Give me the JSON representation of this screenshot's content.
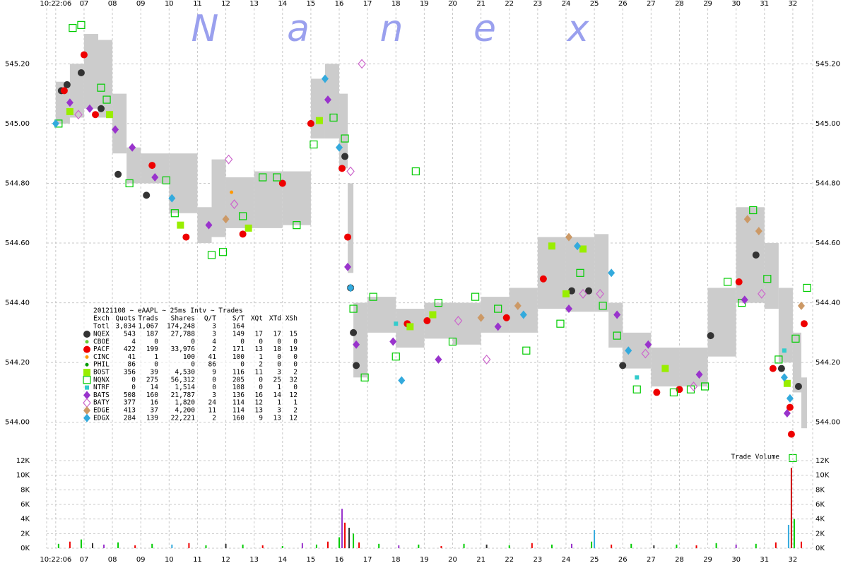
{
  "chart_data": [
    {
      "type": "scatter",
      "watermark": [
        "N",
        "a",
        "n",
        "e",
        "x"
      ],
      "xlim": [
        -0.32,
        26.7
      ],
      "xticks": [
        {
          "value": 0,
          "label": "10:22:06"
        },
        {
          "value": 1,
          "label": "07"
        },
        {
          "value": 2,
          "label": "08"
        },
        {
          "value": 3,
          "label": "09"
        },
        {
          "value": 4,
          "label": "10"
        },
        {
          "value": 5,
          "label": "11"
        },
        {
          "value": 6,
          "label": "12"
        },
        {
          "value": 7,
          "label": "13"
        },
        {
          "value": 8,
          "label": "14"
        },
        {
          "value": 9,
          "label": "15"
        },
        {
          "value": 10,
          "label": "16"
        },
        {
          "value": 11,
          "label": "17"
        },
        {
          "value": 12,
          "label": "18"
        },
        {
          "value": 13,
          "label": "19"
        },
        {
          "value": 14,
          "label": "20"
        },
        {
          "value": 15,
          "label": "21"
        },
        {
          "value": 16,
          "label": "22"
        },
        {
          "value": 17,
          "label": "23"
        },
        {
          "value": 18,
          "label": "24"
        },
        {
          "value": 19,
          "label": "25"
        },
        {
          "value": 20,
          "label": "26"
        },
        {
          "value": 21,
          "label": "27"
        },
        {
          "value": 22,
          "label": "28"
        },
        {
          "value": 23,
          "label": "29"
        },
        {
          "value": 24,
          "label": "30"
        },
        {
          "value": 25,
          "label": "31"
        },
        {
          "value": 26,
          "label": "32"
        }
      ],
      "ylim": [
        543.9,
        545.39
      ],
      "yticks": [
        {
          "value": 544.0,
          "label": "544.00"
        },
        {
          "value": 544.2,
          "label": "544.20"
        },
        {
          "value": 544.4,
          "label": "544.40"
        },
        {
          "value": 544.6,
          "label": "544.60"
        },
        {
          "value": 544.8,
          "label": "544.80"
        },
        {
          "value": 545.0,
          "label": "545.00"
        },
        {
          "value": 545.2,
          "label": "545.20"
        }
      ],
      "grid": true,
      "spread": {
        "color": "#cccccc",
        "x": [
          0,
          0.5,
          1,
          1.5,
          2,
          2.5,
          3,
          4,
          5,
          5.5,
          6,
          7,
          8,
          9,
          9.5,
          10,
          10.3,
          10.5,
          11,
          12,
          13,
          14,
          15,
          16,
          17,
          18,
          19,
          19.5,
          20,
          21,
          22,
          23,
          24,
          25,
          25.5,
          26,
          26.3
        ],
        "low": [
          545.0,
          545.02,
          545.05,
          545.02,
          544.9,
          544.8,
          544.8,
          544.7,
          544.6,
          544.62,
          544.65,
          544.65,
          544.66,
          544.95,
          544.95,
          544.85,
          544.5,
          544.15,
          544.3,
          544.25,
          544.28,
          544.26,
          544.3,
          544.3,
          544.38,
          544.37,
          544.37,
          544.25,
          544.18,
          544.12,
          544.12,
          544.22,
          544.4,
          544.38,
          544.2,
          544.1,
          543.98
        ],
        "high": [
          545.14,
          545.2,
          545.3,
          545.28,
          545.1,
          544.92,
          544.9,
          544.9,
          544.72,
          544.88,
          544.82,
          544.84,
          544.84,
          545.15,
          545.2,
          545.1,
          544.8,
          544.4,
          544.42,
          544.38,
          544.4,
          544.4,
          544.42,
          544.45,
          544.62,
          544.62,
          544.63,
          544.4,
          544.3,
          544.25,
          544.25,
          544.45,
          544.72,
          544.6,
          544.45,
          544.3,
          544.15
        ]
      },
      "legend": {
        "title": "20121108 ~ eAAPL ~ 25ms Intv ~ Trades",
        "columns": [
          "Exch",
          "Quots",
          "Trads",
          "Shares",
          "Q/T",
          "S/T",
          "XQt",
          "XTd",
          "XSh"
        ],
        "total": [
          "Totl",
          "3,034",
          "1,067",
          "174,248",
          "3",
          "164"
        ]
      },
      "series": [
        {
          "name": "NQEX",
          "color": "#333333",
          "marker": "circle",
          "stats": [
            "543",
            "187",
            "27,788",
            "3",
            "149",
            "17",
            "17",
            "15"
          ],
          "x": [
            0.2,
            0.4,
            0.9,
            1.6,
            2.2,
            3.2,
            10.2,
            10.4,
            10.5,
            10.6,
            18.2,
            18.8,
            20.0,
            23.1,
            24.7,
            26.2,
            25.6
          ],
          "values": [
            545.11,
            545.13,
            545.17,
            545.05,
            544.83,
            544.76,
            544.89,
            544.45,
            544.3,
            544.19,
            544.44,
            544.44,
            544.19,
            544.29,
            544.56,
            544.12,
            544.18
          ]
        },
        {
          "name": "CBOE",
          "color": "#66cc33",
          "marker": "dot",
          "stats": [
            "4",
            "0",
            "0",
            "4",
            "0",
            "0",
            "0",
            "0"
          ],
          "x": [],
          "values": []
        },
        {
          "name": "PACF",
          "color": "#ee0000",
          "marker": "circle",
          "stats": [
            "422",
            "199",
            "33,976",
            "2",
            "171",
            "13",
            "18",
            "19"
          ],
          "x": [
            0.3,
            1.0,
            1.4,
            3.4,
            4.6,
            6.6,
            8.0,
            9.0,
            10.1,
            10.3,
            12.4,
            13.1,
            15.9,
            17.2,
            21.2,
            22.0,
            24.1,
            25.3,
            26.4,
            25.9,
            25.95
          ],
          "values": [
            545.11,
            545.23,
            545.03,
            544.86,
            544.62,
            544.63,
            544.8,
            545.0,
            544.85,
            544.62,
            544.33,
            544.34,
            544.35,
            544.48,
            544.1,
            544.11,
            544.47,
            544.18,
            544.33,
            544.05,
            543.96
          ]
        },
        {
          "name": "CINC",
          "color": "#ff9900",
          "marker": "dot",
          "stats": [
            "41",
            "1",
            "100",
            "41",
            "100",
            "1",
            "0",
            "0"
          ],
          "x": [
            6.2
          ],
          "values": [
            544.77
          ]
        },
        {
          "name": "PHIL",
          "color": "#009900",
          "marker": "dot",
          "stats": [
            "86",
            "0",
            "0",
            "86",
            "0",
            "2",
            "0",
            "0"
          ],
          "x": [],
          "values": []
        },
        {
          "name": "BOST",
          "color": "#99ee00",
          "marker": "square",
          "stats": [
            "356",
            "39",
            "4,530",
            "9",
            "116",
            "11",
            "3",
            "2"
          ],
          "x": [
            0.5,
            1.9,
            4.4,
            6.8,
            9.3,
            12.5,
            13.3,
            17.5,
            18.0,
            18.6,
            21.5,
            25.8
          ],
          "values": [
            545.04,
            545.03,
            544.66,
            544.65,
            545.01,
            544.32,
            544.36,
            544.59,
            544.43,
            544.58,
            544.18,
            544.13
          ]
        },
        {
          "name": "NQNX",
          "color": "#00cc00",
          "marker": "hollow-square",
          "stats": [
            "0",
            "275",
            "56,312",
            "0",
            "205",
            "0",
            "25",
            "32"
          ],
          "x": [
            0.1,
            0.6,
            0.9,
            1.6,
            1.8,
            2.6,
            3.9,
            4.2,
            5.5,
            5.9,
            6.6,
            7.3,
            7.8,
            8.5,
            9.1,
            9.8,
            10.2,
            10.5,
            10.9,
            11.2,
            12.0,
            12.7,
            13.5,
            14.0,
            14.8,
            15.6,
            16.6,
            17.8,
            18.5,
            19.3,
            19.8,
            20.5,
            21.8,
            22.4,
            22.9,
            23.7,
            24.2,
            24.6,
            25.1,
            25.5,
            26.1,
            26.0,
            26.5
          ],
          "values": [
            545.0,
            545.32,
            545.33,
            545.12,
            545.08,
            544.8,
            544.81,
            544.7,
            544.56,
            544.57,
            544.69,
            544.82,
            544.82,
            544.66,
            544.93,
            545.02,
            544.95,
            544.38,
            544.15,
            544.42,
            544.22,
            544.84,
            544.4,
            544.27,
            544.42,
            544.38,
            544.24,
            544.33,
            544.5,
            544.39,
            544.29,
            544.11,
            544.1,
            544.11,
            544.12,
            544.47,
            544.4,
            544.71,
            544.48,
            544.21,
            544.28,
            543.88,
            544.45
          ]
        },
        {
          "name": "NTRF",
          "color": "#33cccc",
          "marker": "small-square",
          "stats": [
            "0",
            "14",
            "1,514",
            "0",
            "108",
            "0",
            "1",
            "0"
          ],
          "x": [
            12.0,
            20.5,
            25.7
          ],
          "values": [
            544.33,
            544.15,
            544.24
          ]
        },
        {
          "name": "BATS",
          "color": "#9933cc",
          "marker": "diamond",
          "stats": [
            "508",
            "160",
            "21,787",
            "3",
            "136",
            "16",
            "14",
            "12"
          ],
          "x": [
            0.5,
            1.2,
            2.1,
            2.7,
            3.5,
            5.4,
            9.6,
            10.3,
            10.6,
            11.9,
            13.5,
            15.6,
            18.1,
            19.8,
            20.9,
            22.7,
            24.3,
            25.8
          ],
          "values": [
            545.07,
            545.05,
            544.98,
            544.92,
            544.82,
            544.66,
            545.08,
            544.52,
            544.26,
            544.27,
            544.21,
            544.32,
            544.38,
            544.36,
            544.26,
            544.16,
            544.41,
            544.03
          ]
        },
        {
          "name": "BATY",
          "color": "#cc66cc",
          "marker": "hollow-diamond",
          "stats": [
            "377",
            "16",
            "1,820",
            "24",
            "114",
            "12",
            "1",
            "1"
          ],
          "x": [
            0.8,
            6.1,
            6.3,
            10.8,
            10.4,
            14.2,
            15.2,
            18.6,
            19.2,
            20.8,
            22.5,
            24.9
          ],
          "values": [
            545.03,
            544.88,
            544.73,
            545.2,
            544.84,
            544.34,
            544.21,
            544.43,
            544.43,
            544.23,
            544.12,
            544.43
          ]
        },
        {
          "name": "EDGE",
          "color": "#cc9966",
          "marker": "diamond",
          "stats": [
            "413",
            "37",
            "4,200",
            "11",
            "114",
            "13",
            "3",
            "2"
          ],
          "x": [
            6.0,
            15.0,
            16.3,
            18.1,
            24.4,
            24.8,
            26.3
          ],
          "values": [
            544.68,
            544.35,
            544.39,
            544.62,
            544.68,
            544.64,
            544.39
          ]
        },
        {
          "name": "EDGX",
          "color": "#33aadd",
          "marker": "diamond",
          "stats": [
            "284",
            "139",
            "22,221",
            "2",
            "160",
            "9",
            "13",
            "12"
          ],
          "x": [
            0.0,
            4.1,
            9.5,
            10.0,
            10.4,
            12.2,
            16.5,
            18.4,
            19.6,
            20.2,
            25.7,
            25.9
          ],
          "values": [
            545.0,
            544.75,
            545.15,
            544.92,
            544.45,
            544.14,
            544.36,
            544.59,
            544.5,
            544.24,
            544.15,
            544.08
          ]
        }
      ]
    },
    {
      "type": "bar",
      "label": "Trade Volume",
      "xlim": [
        -0.32,
        26.7
      ],
      "xticks": [
        {
          "value": 0,
          "label": "10:22:06"
        },
        {
          "value": 1,
          "label": "07"
        },
        {
          "value": 2,
          "label": "08"
        },
        {
          "value": 3,
          "label": "09"
        },
        {
          "value": 4,
          "label": "10"
        },
        {
          "value": 5,
          "label": "11"
        },
        {
          "value": 6,
          "label": "12"
        },
        {
          "value": 7,
          "label": "13"
        },
        {
          "value": 8,
          "label": "14"
        },
        {
          "value": 9,
          "label": "15"
        },
        {
          "value": 10,
          "label": "16"
        },
        {
          "value": 11,
          "label": "17"
        },
        {
          "value": 12,
          "label": "18"
        },
        {
          "value": 13,
          "label": "19"
        },
        {
          "value": 14,
          "label": "20"
        },
        {
          "value": 15,
          "label": "21"
        },
        {
          "value": 16,
          "label": "22"
        },
        {
          "value": 17,
          "label": "23"
        },
        {
          "value": 18,
          "label": "24"
        },
        {
          "value": 19,
          "label": "25"
        },
        {
          "value": 20,
          "label": "26"
        },
        {
          "value": 21,
          "label": "27"
        },
        {
          "value": 22,
          "label": "28"
        },
        {
          "value": 23,
          "label": "29"
        },
        {
          "value": 24,
          "label": "30"
        },
        {
          "value": 25,
          "label": "31"
        },
        {
          "value": 26,
          "label": "32"
        }
      ],
      "ylim": [
        0,
        12000
      ],
      "yticks": [
        {
          "value": 0,
          "label": "0K"
        },
        {
          "value": 2000,
          "label": "2K"
        },
        {
          "value": 4000,
          "label": "4K"
        },
        {
          "value": 6000,
          "label": "6K"
        },
        {
          "value": 8000,
          "label": "8K"
        },
        {
          "value": 10000,
          "label": "10K"
        },
        {
          "value": 12000,
          "label": "12K"
        }
      ],
      "x": [
        0.1,
        0.5,
        0.9,
        1.3,
        1.7,
        2.2,
        2.8,
        3.4,
        4.1,
        4.7,
        5.3,
        6.0,
        6.6,
        7.3,
        8.0,
        8.7,
        9.2,
        9.6,
        10.0,
        10.1,
        10.2,
        10.35,
        10.5,
        10.7,
        11.4,
        12.1,
        12.8,
        13.6,
        14.4,
        15.2,
        16.0,
        16.8,
        17.5,
        18.2,
        18.9,
        19.0,
        19.6,
        20.3,
        21.1,
        21.9,
        22.6,
        23.3,
        24.0,
        24.7,
        25.4,
        25.85,
        25.95,
        26.05,
        26.3
      ],
      "values": [
        600,
        900,
        1200,
        700,
        500,
        800,
        400,
        600,
        500,
        700,
        400,
        600,
        500,
        400,
        300,
        700,
        500,
        900,
        1500,
        5400,
        3500,
        2800,
        2000,
        800,
        600,
        400,
        500,
        300,
        600,
        500,
        400,
        700,
        500,
        600,
        900,
        2500,
        500,
        600,
        400,
        500,
        400,
        700,
        500,
        600,
        800,
        3200,
        11000,
        4000,
        900
      ],
      "colors": [
        "#00cc00",
        "#ee0000",
        "#00cc00",
        "#333333",
        "#9933cc",
        "#00cc00",
        "#ee0000",
        "#00cc00",
        "#33aadd",
        "#ee0000",
        "#00cc00",
        "#333333",
        "#00cc00",
        "#ee0000",
        "#00cc00",
        "#9933cc",
        "#00cc00",
        "#ee0000",
        "#00cc00",
        "#9933cc",
        "#ee0000",
        "#333333",
        "#00cc00",
        "#ee0000",
        "#00cc00",
        "#9933cc",
        "#00cc00",
        "#ee0000",
        "#00cc00",
        "#333333",
        "#00cc00",
        "#ee0000",
        "#00cc00",
        "#9933cc",
        "#00cc00",
        "#33aadd",
        "#ee0000",
        "#00cc00",
        "#333333",
        "#00cc00",
        "#ee0000",
        "#00cc00",
        "#9933cc",
        "#00cc00",
        "#ee0000",
        "#33aadd",
        "#cc0000",
        "#00cc00",
        "#ee0000"
      ]
    }
  ]
}
